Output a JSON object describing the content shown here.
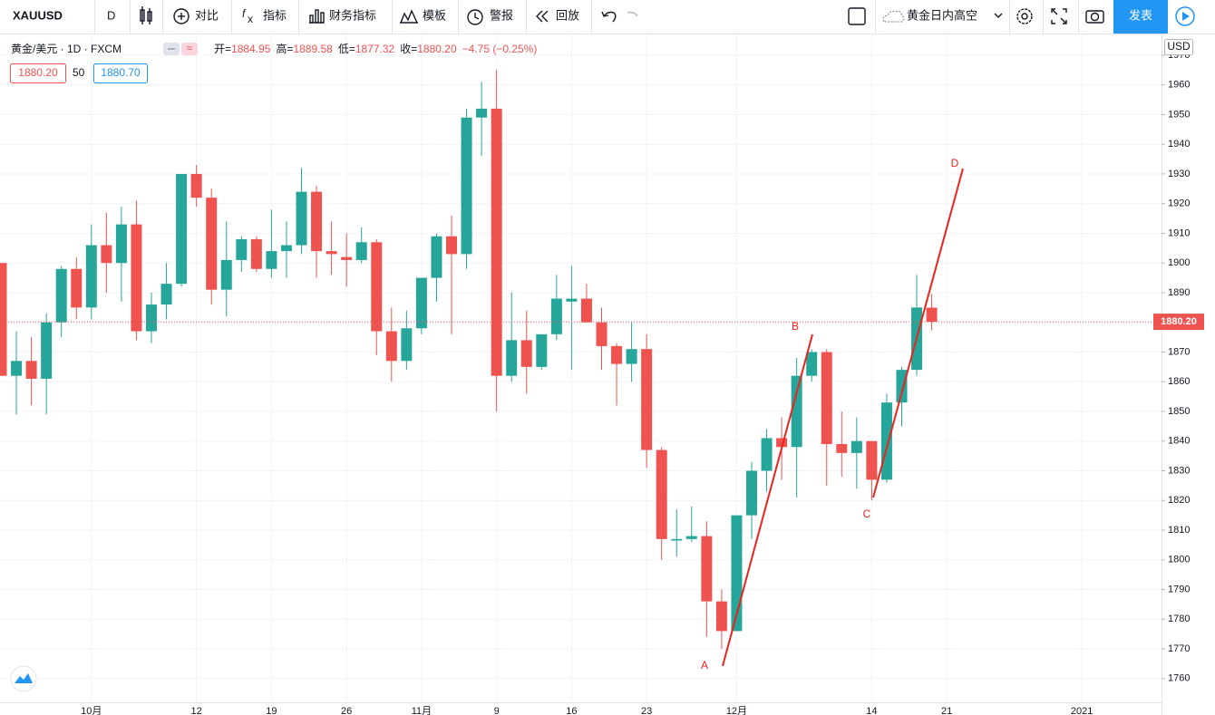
{
  "toolbar": {
    "symbol": "XAUUSD",
    "interval": "D",
    "compare": "对比",
    "indicators": "指标",
    "financials": "财务指标",
    "templates": "模板",
    "alerts": "警报",
    "replay": "回放",
    "layout_name": "黄金日内高空",
    "publish": "发表"
  },
  "chart_data": {
    "type": "candlestick",
    "title": "黄金/美元 · 1D · FXCM",
    "legend": [
      {
        "label": "开=",
        "value": "1884.95"
      },
      {
        "label": "高=",
        "value": "1889.58"
      },
      {
        "label": "低=",
        "value": "1877.32"
      },
      {
        "label": "收=",
        "value": "1880.20"
      }
    ],
    "change": "−4.75 (−0.25%)",
    "quote": {
      "bid": "1880.20",
      "spread": "50",
      "ask": "1880.70"
    },
    "currency": "USD",
    "annotations": [
      "A",
      "B",
      "C",
      "D"
    ],
    "up_color": "#26a69a",
    "down_color": "#ef5350",
    "categories": [
      null,
      null,
      null,
      null,
      null,
      null,
      "10月",
      null,
      null,
      null,
      null,
      null,
      null,
      "12",
      null,
      null,
      null,
      null,
      "19",
      null,
      null,
      null,
      null,
      "26",
      null,
      null,
      null,
      null,
      "11月",
      null,
      null,
      null,
      null,
      "9",
      null,
      null,
      null,
      null,
      "16",
      null,
      null,
      null,
      null,
      "23",
      null,
      null,
      null,
      null,
      null,
      "12月",
      null,
      null,
      null,
      null,
      null,
      null,
      null,
      null,
      "14",
      null,
      null,
      null,
      null,
      "21",
      null,
      null,
      null,
      null,
      null,
      null,
      null,
      null,
      "2021",
      null,
      null,
      null,
      null,
      null
    ],
    "open": [
      1900,
      1862,
      1867,
      1861,
      1880,
      1898,
      1885,
      1906,
      1900,
      1913,
      1877,
      1886,
      1893,
      1930,
      1922,
      1891,
      1901,
      1908,
      1898,
      1904,
      1906,
      1924,
      1904,
      1902,
      1901,
      1907,
      1877,
      1867,
      1878,
      1895,
      1909,
      1903,
      1949,
      1952,
      1862,
      1874,
      1865,
      1876,
      1887,
      1888,
      1880,
      1872,
      1866,
      1871,
      1837,
      1806.5,
      1807,
      1808,
      1786,
      1776,
      1815,
      1830,
      1841,
      1838,
      1862,
      1870,
      1839,
      1836,
      1840,
      1827,
      1853,
      1864,
      1884.95,
      null,
      null,
      null,
      null,
      null,
      null,
      null,
      null,
      null,
      null,
      null,
      null,
      null,
      null,
      null
    ],
    "high": [
      1900,
      1877,
      1875,
      1883,
      1899,
      1902,
      1913,
      1917,
      1919,
      1921,
      1890,
      1900,
      1930,
      1933,
      1925,
      1914,
      1909,
      1909,
      1918,
      1914,
      1932,
      1926,
      1914,
      1910,
      1912,
      1908,
      1885,
      1884,
      1895,
      1910,
      1916,
      1952,
      1961,
      1965,
      1890,
      1884,
      1876,
      1896,
      1899,
      1893,
      1885,
      1873,
      1880,
      1876,
      1838,
      1817,
      1818,
      1813,
      1790,
      1815,
      1833,
      1844,
      1848,
      1868,
      1871,
      1871,
      1850,
      1848,
      1840,
      1856,
      1865,
      1896,
      1889.58,
      null,
      null,
      null,
      null,
      null,
      null,
      null,
      null,
      null,
      null,
      null,
      null,
      null,
      null,
      null
    ],
    "low": [
      1862,
      1849,
      1852,
      1849,
      1875,
      1881,
      1881,
      1890,
      1887,
      1874,
      1873,
      1881,
      1892,
      1919,
      1886,
      1882,
      1897,
      1897,
      1895,
      1895,
      1903,
      1895,
      1896,
      1892,
      1900,
      1869,
      1860,
      1864,
      1876,
      1887,
      1876,
      1898,
      1936,
      1850,
      1860,
      1856,
      1864,
      1874,
      1864,
      1880,
      1864,
      1852,
      1860,
      1831,
      1800,
      1801,
      1806,
      1774,
      1770,
      1776,
      1807,
      1823,
      1827,
      1821,
      1860,
      1825,
      1828,
      1824,
      1820,
      1826,
      1845,
      1862,
      1877.32,
      null,
      null,
      null,
      null,
      null,
      null,
      null,
      null,
      null,
      null,
      null,
      null,
      null,
      null,
      null
    ],
    "close": [
      1862,
      1867,
      1861,
      1880,
      1898,
      1885,
      1906,
      1900,
      1913,
      1877,
      1886,
      1893,
      1930,
      1922,
      1891,
      1901,
      1908,
      1898,
      1904,
      1906,
      1924,
      1904,
      1903,
      1901,
      1907,
      1877,
      1867,
      1878,
      1895,
      1909,
      1903,
      1949,
      1952,
      1862,
      1874,
      1865,
      1876,
      1888,
      1888,
      1880,
      1872,
      1866,
      1871,
      1837,
      1807,
      1807,
      1808,
      1786,
      1776,
      1815,
      1830,
      1841,
      1838,
      1862,
      1870,
      1839,
      1836,
      1840,
      1827,
      1853,
      1864,
      1885,
      1880.2,
      null,
      null,
      null,
      null,
      null,
      null,
      null,
      null,
      null,
      null,
      null,
      null,
      null,
      null,
      null
    ],
    "last_price": {
      "value": 1880.2,
      "label": "1880.20"
    },
    "ylim": [
      1752,
      1977
    ],
    "yticks": [
      1760,
      1770,
      1780,
      1790,
      1800,
      1810,
      1820,
      1830,
      1840,
      1850,
      1860,
      1870,
      1880,
      1890,
      1900,
      1910,
      1920,
      1930,
      1940,
      1950,
      1960,
      1970
    ],
    "grid": true
  }
}
